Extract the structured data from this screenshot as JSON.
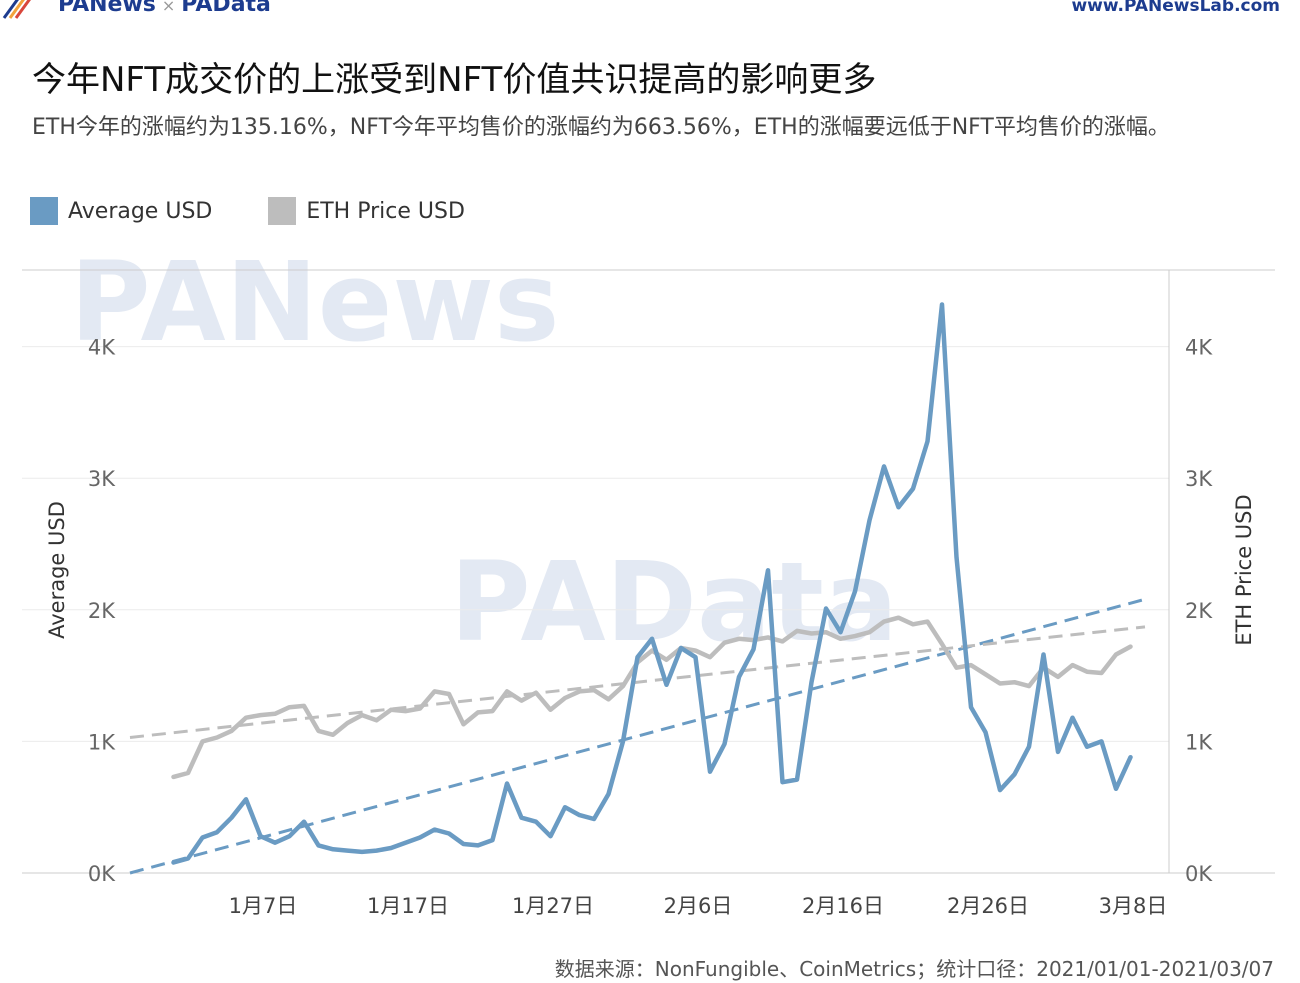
{
  "header": {
    "brand_left": "PANews",
    "brand_sep": "×",
    "brand_right": "PAData",
    "site": "www.PANewsLab.com"
  },
  "title": "今年NFT成交价的上涨受到NFT价值共识提高的影响更多",
  "subtitle": "ETH今年的涨幅约为135.16%，NFT今年平均售价的涨幅约为663.56%，ETH的涨幅要远低于NFT平均售价的涨幅。",
  "source": "数据来源：NonFungible、CoinMetrics；统计口径：2021/01/01-2021/03/07",
  "watermarks": [
    "PANews",
    "PAData"
  ],
  "colors": {
    "average": "#6a9bc3",
    "eth": "#bdbdbd",
    "grid": "#ececec",
    "axis": "#cccccc"
  },
  "chart_data": {
    "type": "line",
    "x_start": "2021-01-01",
    "x_end": "2021-03-10",
    "x_ticks": [
      "1月7日",
      "1月17日",
      "1月27日",
      "2月6日",
      "2月16日",
      "2月26日",
      "3月8日"
    ],
    "y_ticks": [
      "0K",
      "1K",
      "2K",
      "3K",
      "4K"
    ],
    "ylim": [
      0,
      4600
    ],
    "ylabel_left": "Average USD",
    "ylabel_right": "ETH Price USD",
    "legend_placement": "top-left",
    "grid": true,
    "series": [
      {
        "name": "Average USD",
        "axis": "left",
        "values": [
          [
            "2021-01-04",
            80
          ],
          [
            "2021-01-05",
            110
          ],
          [
            "2021-01-06",
            270
          ],
          [
            "2021-01-07",
            310
          ],
          [
            "2021-01-08",
            420
          ],
          [
            "2021-01-09",
            560
          ],
          [
            "2021-01-10",
            280
          ],
          [
            "2021-01-11",
            230
          ],
          [
            "2021-01-12",
            280
          ],
          [
            "2021-01-13",
            390
          ],
          [
            "2021-01-14",
            210
          ],
          [
            "2021-01-15",
            180
          ],
          [
            "2021-01-16",
            170
          ],
          [
            "2021-01-17",
            160
          ],
          [
            "2021-01-18",
            170
          ],
          [
            "2021-01-19",
            190
          ],
          [
            "2021-01-20",
            230
          ],
          [
            "2021-01-21",
            270
          ],
          [
            "2021-01-22",
            330
          ],
          [
            "2021-01-23",
            300
          ],
          [
            "2021-01-24",
            220
          ],
          [
            "2021-01-25",
            210
          ],
          [
            "2021-01-26",
            250
          ],
          [
            "2021-01-27",
            680
          ],
          [
            "2021-01-28",
            420
          ],
          [
            "2021-01-29",
            390
          ],
          [
            "2021-01-30",
            280
          ],
          [
            "2021-01-31",
            500
          ],
          [
            "2021-02-01",
            440
          ],
          [
            "2021-02-02",
            410
          ],
          [
            "2021-02-03",
            600
          ],
          [
            "2021-02-04",
            1000
          ],
          [
            "2021-02-05",
            1640
          ],
          [
            "2021-02-06",
            1780
          ],
          [
            "2021-02-07",
            1430
          ],
          [
            "2021-02-08",
            1710
          ],
          [
            "2021-02-09",
            1640
          ],
          [
            "2021-02-10",
            770
          ],
          [
            "2021-02-11",
            980
          ],
          [
            "2021-02-12",
            1490
          ],
          [
            "2021-02-13",
            1700
          ],
          [
            "2021-02-14",
            2300
          ],
          [
            "2021-02-15",
            690
          ],
          [
            "2021-02-16",
            710
          ],
          [
            "2021-02-17",
            1450
          ],
          [
            "2021-02-18",
            2010
          ],
          [
            "2021-02-19",
            1830
          ],
          [
            "2021-02-20",
            2140
          ],
          [
            "2021-02-21",
            2680
          ],
          [
            "2021-02-22",
            3090
          ],
          [
            "2021-02-23",
            2780
          ],
          [
            "2021-02-24",
            2920
          ],
          [
            "2021-02-25",
            3280
          ],
          [
            "2021-02-26",
            4320
          ],
          [
            "2021-02-27",
            2400
          ],
          [
            "2021-02-28",
            1260
          ],
          [
            "2021-03-01",
            1070
          ],
          [
            "2021-03-02",
            630
          ],
          [
            "2021-03-03",
            750
          ],
          [
            "2021-03-04",
            960
          ],
          [
            "2021-03-05",
            1660
          ],
          [
            "2021-03-06",
            920
          ],
          [
            "2021-03-07",
            1180
          ],
          [
            "2021-03-08",
            960
          ],
          [
            "2021-03-09",
            1000
          ],
          [
            "2021-03-10",
            640
          ],
          [
            "2021-03-11",
            880
          ]
        ]
      },
      {
        "name": "ETH Price USD",
        "axis": "right",
        "values": [
          [
            "2021-01-04",
            730
          ],
          [
            "2021-01-05",
            760
          ],
          [
            "2021-01-06",
            1000
          ],
          [
            "2021-01-07",
            1030
          ],
          [
            "2021-01-08",
            1080
          ],
          [
            "2021-01-09",
            1180
          ],
          [
            "2021-01-10",
            1200
          ],
          [
            "2021-01-11",
            1210
          ],
          [
            "2021-01-12",
            1260
          ],
          [
            "2021-01-13",
            1270
          ],
          [
            "2021-01-14",
            1080
          ],
          [
            "2021-01-15",
            1050
          ],
          [
            "2021-01-16",
            1140
          ],
          [
            "2021-01-17",
            1200
          ],
          [
            "2021-01-18",
            1160
          ],
          [
            "2021-01-19",
            1240
          ],
          [
            "2021-01-20",
            1230
          ],
          [
            "2021-01-21",
            1250
          ],
          [
            "2021-01-22",
            1380
          ],
          [
            "2021-01-23",
            1360
          ],
          [
            "2021-01-24",
            1130
          ],
          [
            "2021-01-25",
            1220
          ],
          [
            "2021-01-26",
            1230
          ],
          [
            "2021-01-27",
            1380
          ],
          [
            "2021-01-28",
            1310
          ],
          [
            "2021-01-29",
            1370
          ],
          [
            "2021-01-30",
            1240
          ],
          [
            "2021-01-31",
            1330
          ],
          [
            "2021-02-01",
            1380
          ],
          [
            "2021-02-02",
            1390
          ],
          [
            "2021-02-03",
            1320
          ],
          [
            "2021-02-04",
            1420
          ],
          [
            "2021-02-05",
            1600
          ],
          [
            "2021-02-06",
            1690
          ],
          [
            "2021-02-07",
            1620
          ],
          [
            "2021-02-08",
            1710
          ],
          [
            "2021-02-09",
            1690
          ],
          [
            "2021-02-10",
            1640
          ],
          [
            "2021-02-11",
            1750
          ],
          [
            "2021-02-12",
            1780
          ],
          [
            "2021-02-13",
            1770
          ],
          [
            "2021-02-14",
            1790
          ],
          [
            "2021-02-15",
            1760
          ],
          [
            "2021-02-16",
            1840
          ],
          [
            "2021-02-17",
            1820
          ],
          [
            "2021-02-18",
            1830
          ],
          [
            "2021-02-19",
            1780
          ],
          [
            "2021-02-20",
            1800
          ],
          [
            "2021-02-21",
            1830
          ],
          [
            "2021-02-22",
            1910
          ],
          [
            "2021-02-23",
            1940
          ],
          [
            "2021-02-24",
            1890
          ],
          [
            "2021-02-25",
            1910
          ],
          [
            "2021-02-26",
            1740
          ],
          [
            "2021-02-27",
            1560
          ],
          [
            "2021-02-28",
            1580
          ],
          [
            "2021-03-01",
            1510
          ],
          [
            "2021-03-02",
            1440
          ],
          [
            "2021-03-03",
            1450
          ],
          [
            "2021-03-04",
            1420
          ],
          [
            "2021-03-05",
            1560
          ],
          [
            "2021-03-06",
            1490
          ],
          [
            "2021-03-07",
            1580
          ],
          [
            "2021-03-08",
            1530
          ],
          [
            "2021-03-09",
            1520
          ],
          [
            "2021-03-10",
            1660
          ],
          [
            "2021-03-11",
            1720
          ]
        ]
      }
    ],
    "trendlines": [
      {
        "name": "Average USD trend",
        "dashed": true,
        "from": [
          "2021-01-01",
          0
        ],
        "to": [
          "2021-03-12",
          2080
        ]
      },
      {
        "name": "ETH Price USD trend",
        "dashed": true,
        "from": [
          "2021-01-01",
          1030
        ],
        "to": [
          "2021-03-12",
          1870
        ]
      }
    ]
  }
}
